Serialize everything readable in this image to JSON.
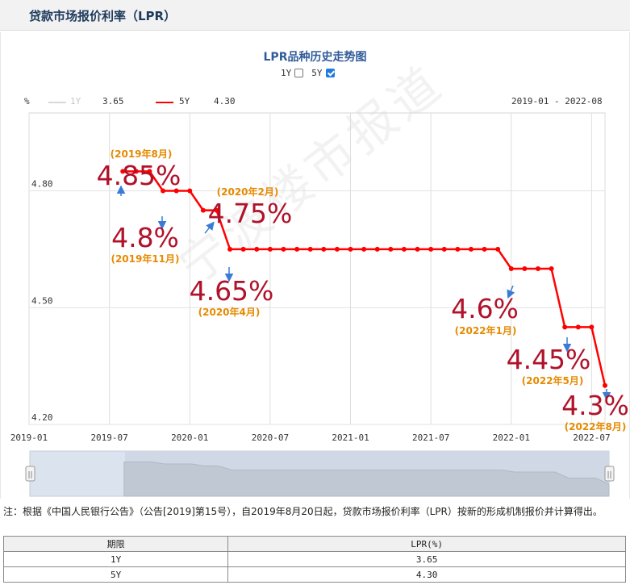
{
  "page": {
    "title": "贷款市场报价利率（LPR）"
  },
  "chart_data": {
    "type": "line",
    "title": "LPR品种历史走势图",
    "ylabel": "%",
    "range_label": "2019-01 - 2022-08",
    "ylim": [
      4.2,
      5.0
    ],
    "yticks": [
      "4.80",
      "4.50",
      "4.20"
    ],
    "ytick_values": [
      4.8,
      4.5,
      4.2
    ],
    "xlim": [
      "2019-01",
      "2022-08"
    ],
    "xticks": [
      "2019-01",
      "2019-07",
      "2020-01",
      "2020-07",
      "2021-01",
      "2021-07",
      "2022-01",
      "2022-07"
    ],
    "toggles": [
      {
        "label": "1Y",
        "checked": false
      },
      {
        "label": "5Y",
        "checked": true
      }
    ],
    "legend": [
      {
        "name": "1Y",
        "value": "3.65",
        "color": "#cfcfcf",
        "active": false
      },
      {
        "name": "5Y",
        "value": "4.30",
        "color": "#ff0000",
        "active": true
      }
    ],
    "series": [
      {
        "name": "5Y",
        "color": "#ff0000",
        "x": [
          "2019-08",
          "2019-09",
          "2019-10",
          "2019-11",
          "2019-12",
          "2020-01",
          "2020-02",
          "2020-03",
          "2020-04",
          "2020-05",
          "2020-06",
          "2020-07",
          "2020-08",
          "2020-09",
          "2020-10",
          "2020-11",
          "2020-12",
          "2021-01",
          "2021-02",
          "2021-03",
          "2021-04",
          "2021-05",
          "2021-06",
          "2021-07",
          "2021-08",
          "2021-09",
          "2021-10",
          "2021-11",
          "2021-12",
          "2022-01",
          "2022-02",
          "2022-03",
          "2022-04",
          "2022-05",
          "2022-06",
          "2022-07",
          "2022-08"
        ],
        "values": [
          4.85,
          4.85,
          4.85,
          4.8,
          4.8,
          4.8,
          4.75,
          4.75,
          4.65,
          4.65,
          4.65,
          4.65,
          4.65,
          4.65,
          4.65,
          4.65,
          4.65,
          4.65,
          4.65,
          4.65,
          4.65,
          4.65,
          4.65,
          4.65,
          4.65,
          4.65,
          4.65,
          4.65,
          4.65,
          4.6,
          4.6,
          4.6,
          4.6,
          4.45,
          4.45,
          4.45,
          4.3
        ]
      }
    ],
    "annotations": [
      {
        "date": "(2019年8月)",
        "rate": "4.85%",
        "x": "2019-08",
        "y": 4.85
      },
      {
        "date": "(2019年11月)",
        "rate": "4.8%",
        "x": "2019-11",
        "y": 4.8
      },
      {
        "date": "(2020年2月)",
        "rate": "4.75%",
        "x": "2020-02",
        "y": 4.75
      },
      {
        "date": "(2020年4月)",
        "rate": "4.65%",
        "x": "2020-04",
        "y": 4.65
      },
      {
        "date": "(2022年1月)",
        "rate": "4.6%",
        "x": "2022-01",
        "y": 4.6
      },
      {
        "date": "(2022年5月)",
        "rate": "4.45%",
        "x": "2022-05",
        "y": 4.45
      },
      {
        "date": "(2022年8月)",
        "rate": "4.3%",
        "x": "2022-08",
        "y": 4.3
      }
    ]
  },
  "navigator": {
    "left_handle": "||",
    "right_handle": "||"
  },
  "watermark": "宁波楼市报道",
  "note": "注：根据《中国人民银行公告》（公告[2019]第15号），自2019年8月20日起，贷款市场报价利率（LPR）按新的形成机制报价并计算得出。",
  "table": {
    "headers": [
      "期限",
      "LPR(%)"
    ],
    "rows": [
      [
        "1Y",
        "3.65"
      ],
      [
        "5Y",
        "4.30"
      ]
    ]
  },
  "colors": {
    "accent": "#ff0000",
    "annotation_date": "#e68a00",
    "annotation_rate": "#b0122a",
    "arrow": "#3a7bd5"
  }
}
